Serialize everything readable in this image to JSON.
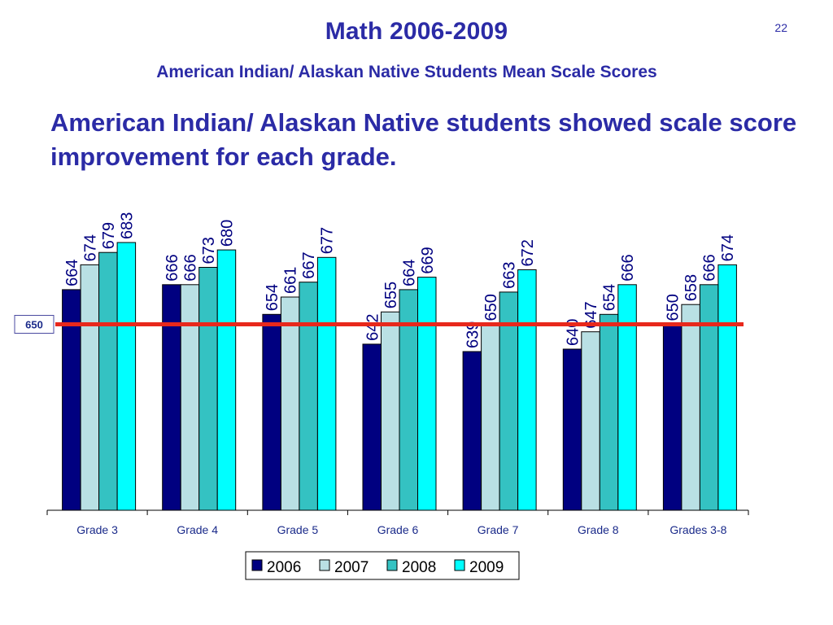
{
  "slide": {
    "title": "Math 2006-2009",
    "subtitle": "American Indian/ Alaskan Native Students  Mean Scale Scores",
    "page_number": "22",
    "headline": "American Indian/ Alaskan Native students showed scale score improvement for each grade."
  },
  "colors": {
    "title": "#2b2ba6",
    "reference_line": "#e8281c",
    "series": [
      "#000080",
      "#b9e0e4",
      "#34c2c2",
      "#00ffff"
    ]
  },
  "chart_data": {
    "type": "bar",
    "categories": [
      "Grade 3",
      "Grade 4",
      "Grade 5",
      "Grade 6",
      "Grade 7",
      "Grade 8",
      "Grades 3-8"
    ],
    "series": [
      {
        "name": "2006",
        "values": [
          664,
          666,
          654,
          642,
          639,
          640,
          650
        ]
      },
      {
        "name": "2007",
        "values": [
          674,
          666,
          661,
          655,
          650,
          647,
          658
        ]
      },
      {
        "name": "2008",
        "values": [
          679,
          673,
          667,
          664,
          663,
          654,
          666
        ]
      },
      {
        "name": "2009",
        "values": [
          683,
          680,
          677,
          669,
          672,
          666,
          674
        ]
      }
    ],
    "reference_line": {
      "value": 650,
      "label": "650"
    },
    "legend_position": "bottom",
    "grid": false,
    "ylim": [
      575,
      690
    ]
  }
}
